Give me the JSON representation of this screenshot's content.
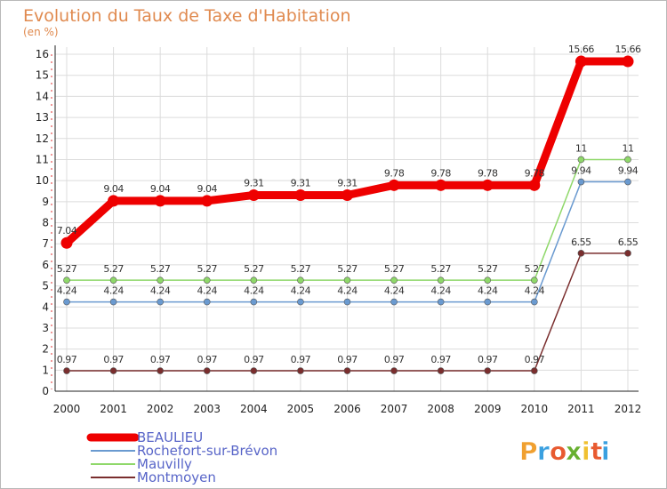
{
  "chart_data": {
    "type": "line",
    "title": "Evolution du Taux de Taxe d'Habitation",
    "subtitle": "(en %)",
    "xlabel": "",
    "ylabel": "",
    "ylim": [
      0,
      16
    ],
    "yticks": [
      0,
      1,
      2,
      3,
      4,
      5,
      6,
      7,
      8,
      9,
      10,
      11,
      12,
      13,
      14,
      15,
      16
    ],
    "grid": true,
    "legend_position": "bottom-left",
    "categories": [
      "2000",
      "2001",
      "2002",
      "2003",
      "2004",
      "2005",
      "2006",
      "2007",
      "2008",
      "2009",
      "2010",
      "2011",
      "2012"
    ],
    "series": [
      {
        "name": "Montmoyen",
        "color": "#7a2e2e",
        "values": [
          0.97,
          0.97,
          0.97,
          0.97,
          0.97,
          0.97,
          0.97,
          0.97,
          0.97,
          0.97,
          0.97,
          6.55,
          6.55
        ],
        "labels": [
          "0.97",
          "0.97",
          "0.97",
          "0.97",
          "0.97",
          "0.97",
          "0.97",
          "0.97",
          "0.97",
          "0.97",
          "0.97",
          "6.55",
          "6.55"
        ]
      },
      {
        "name": "Rochefort-sur-Brévon",
        "color": "#6a9ad0",
        "values": [
          4.24,
          4.24,
          4.24,
          4.24,
          4.24,
          4.24,
          4.24,
          4.24,
          4.24,
          4.24,
          4.24,
          9.94,
          9.94
        ],
        "labels": [
          "4.24",
          "4.24",
          "4.24",
          "4.24",
          "4.24",
          "4.24",
          "4.24",
          "4.24",
          "4.24",
          "4.24",
          "4.24",
          "9.94",
          "9.94"
        ]
      },
      {
        "name": "Mauvilly",
        "color": "#8fd86a",
        "values": [
          5.27,
          5.27,
          5.27,
          5.27,
          5.27,
          5.27,
          5.27,
          5.27,
          5.27,
          5.27,
          5.27,
          11,
          11
        ],
        "labels": [
          "5.27",
          "5.27",
          "5.27",
          "5.27",
          "5.27",
          "5.27",
          "5.27",
          "5.27",
          "5.27",
          "5.27",
          "5.27",
          "11",
          "11"
        ]
      },
      {
        "name": "BEAULIEU",
        "color": "#ee0000",
        "values": [
          7.04,
          9.04,
          9.04,
          9.04,
          9.31,
          9.31,
          9.31,
          9.78,
          9.78,
          9.78,
          9.78,
          15.66,
          15.66
        ],
        "labels": [
          "7.04",
          "9.04",
          "9.04",
          "9.04",
          "9.31",
          "9.31",
          "9.31",
          "9.78",
          "9.78",
          "9.78",
          "9.78",
          "15.66",
          "15.66"
        ]
      }
    ],
    "legend": [
      {
        "name": "BEAULIEU",
        "color": "#ee0000",
        "bold": true
      },
      {
        "name": "Rochefort-sur-Brévon",
        "color": "#6a9ad0",
        "bold": false
      },
      {
        "name": "Mauvilly",
        "color": "#8fd86a",
        "bold": false
      },
      {
        "name": "Montmoyen",
        "color": "#7a2e2e",
        "bold": false
      }
    ]
  },
  "logo": {
    "text": "Proxiti",
    "letters": [
      {
        "ch": "P",
        "color": "#f0a030"
      },
      {
        "ch": "r",
        "color": "#3aa0e0"
      },
      {
        "ch": "o",
        "color": "#e85a30"
      },
      {
        "ch": "x",
        "color": "#68b030"
      },
      {
        "ch": "i",
        "color": "#f0c030"
      },
      {
        "ch": "t",
        "color": "#e85a30"
      },
      {
        "ch": "i",
        "color": "#3aa0e0"
      }
    ]
  }
}
